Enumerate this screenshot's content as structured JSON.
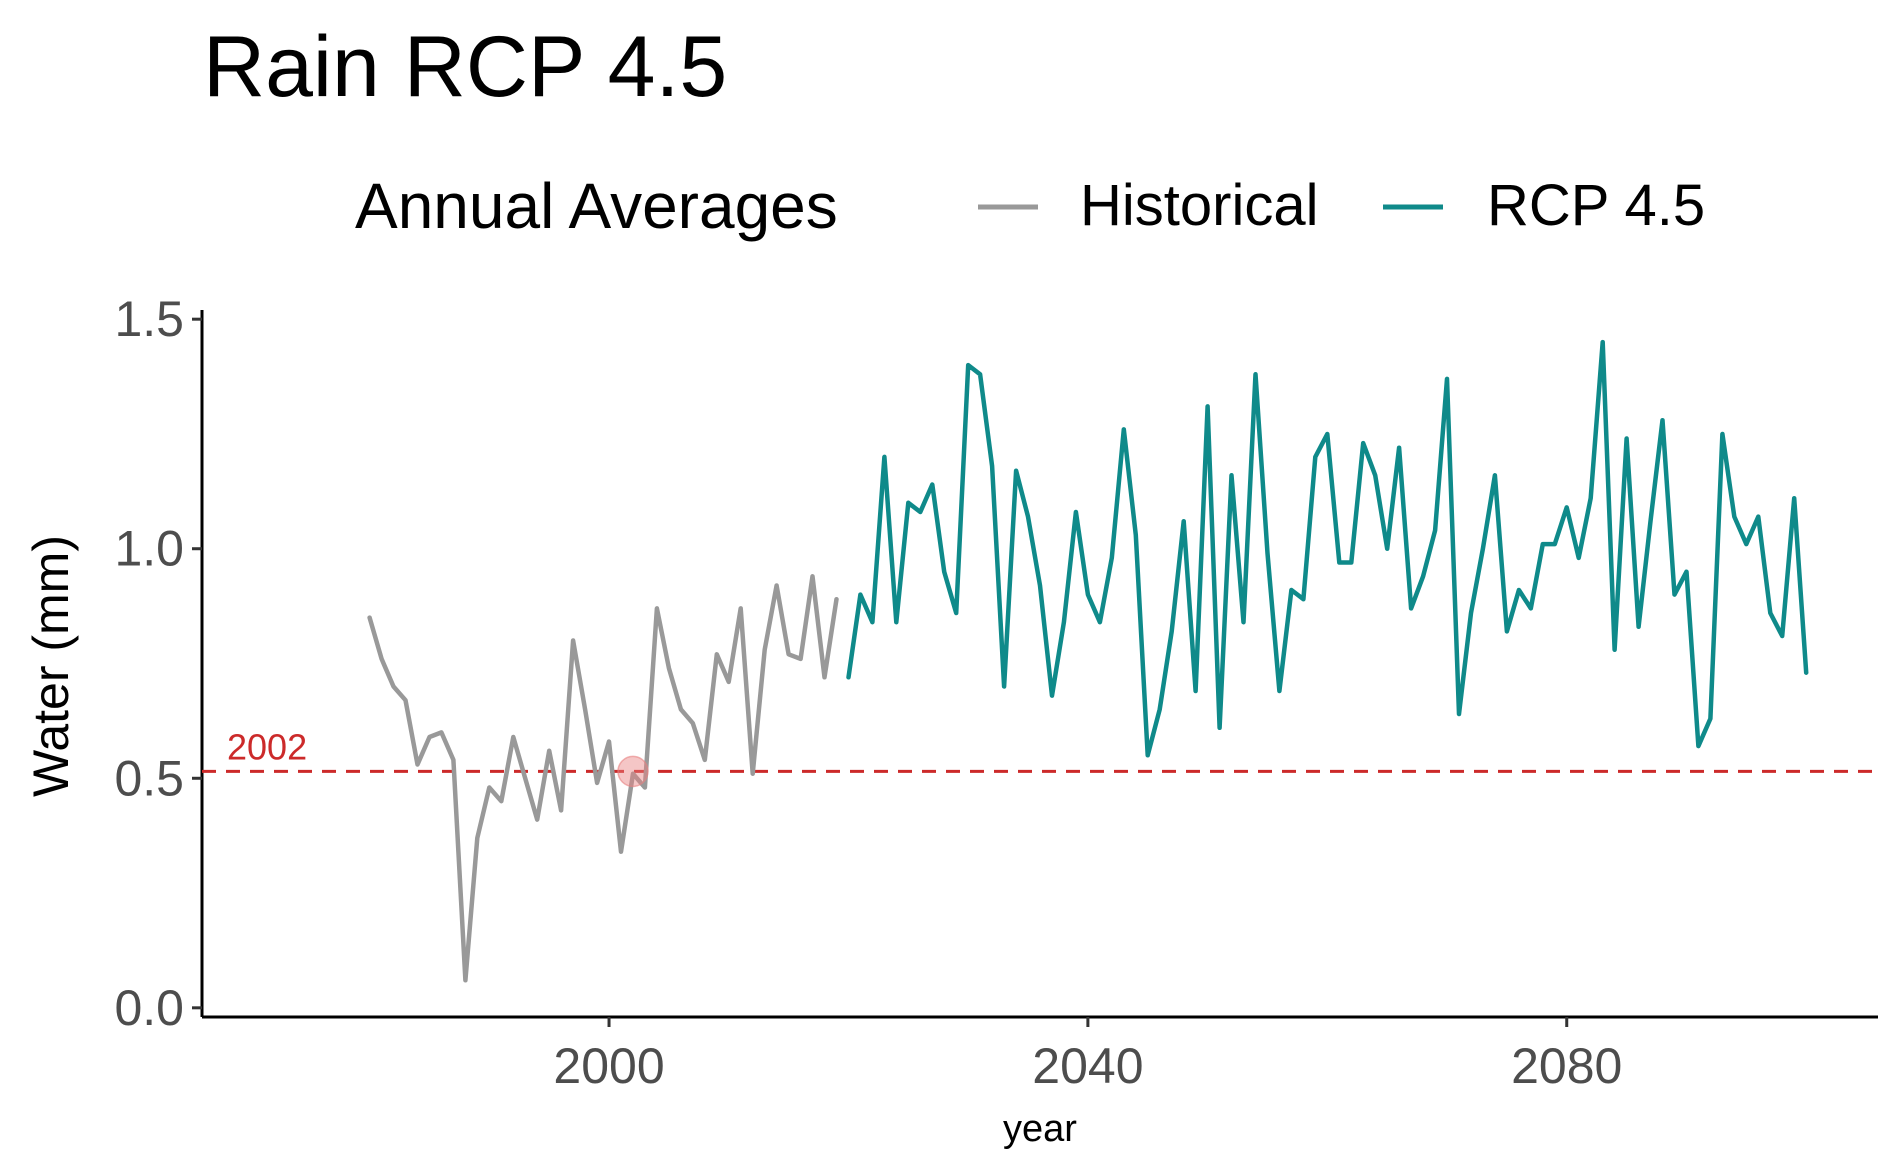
{
  "chart_data": {
    "type": "line",
    "title": "Rain RCP 4.5",
    "legend": {
      "title": "Annual Averages",
      "position": "top",
      "entries": [
        {
          "label": "Historical",
          "color": "#999999"
        },
        {
          "label": "RCP 4.5",
          "color": "#0f8a8a"
        }
      ]
    },
    "xlabel": "year",
    "ylabel": "Water (mm)",
    "xlim": [
      1966,
      2106
    ],
    "ylim": [
      -0.02,
      1.52
    ],
    "xticks": [
      2000,
      2040,
      2080
    ],
    "yticks": [
      0.0,
      0.5,
      1.0,
      1.5
    ],
    "ytick_labels": [
      "0.0",
      "0.5",
      "1.0",
      "1.5"
    ],
    "grid": false,
    "reference_line": {
      "y": 0.515,
      "label": "2002",
      "color": "#cc2a2a",
      "style": "dashed"
    },
    "highlight_point": {
      "x": 2002,
      "y": 0.515,
      "color": "#e88080"
    },
    "series": [
      {
        "name": "Historical",
        "color": "#999999",
        "x": [
          1980,
          1981,
          1982,
          1983,
          1984,
          1985,
          1986,
          1987,
          1988,
          1989,
          1990,
          1991,
          1992,
          1993,
          1994,
          1995,
          1996,
          1997,
          1998,
          1999,
          2000,
          2001,
          2002,
          2003,
          2004,
          2005,
          2006,
          2007,
          2008,
          2009,
          2010,
          2011,
          2012,
          2013,
          2014,
          2015,
          2016,
          2017,
          2018,
          2019
        ],
        "y": [
          0.85,
          0.76,
          0.7,
          0.67,
          0.53,
          0.59,
          0.6,
          0.54,
          0.06,
          0.37,
          0.48,
          0.45,
          0.59,
          0.5,
          0.41,
          0.56,
          0.43,
          0.8,
          0.65,
          0.49,
          0.58,
          0.34,
          0.51,
          0.48,
          0.87,
          0.74,
          0.65,
          0.62,
          0.54,
          0.77,
          0.71,
          0.87,
          0.51,
          0.78,
          0.92,
          0.77,
          0.76,
          0.94,
          0.72,
          0.89
        ]
      },
      {
        "name": "RCP 4.5",
        "color": "#0f8a8a",
        "x": [
          2020,
          2021,
          2022,
          2023,
          2024,
          2025,
          2026,
          2027,
          2028,
          2029,
          2030,
          2031,
          2032,
          2033,
          2034,
          2035,
          2036,
          2037,
          2038,
          2039,
          2040,
          2041,
          2042,
          2043,
          2044,
          2045,
          2046,
          2047,
          2048,
          2049,
          2050,
          2051,
          2052,
          2053,
          2054,
          2055,
          2056,
          2057,
          2058,
          2059,
          2060,
          2061,
          2062,
          2063,
          2064,
          2065,
          2066,
          2067,
          2068,
          2069,
          2070,
          2071,
          2072,
          2073,
          2074,
          2075,
          2076,
          2077,
          2078,
          2079,
          2080,
          2081,
          2082,
          2083,
          2084,
          2085,
          2086,
          2087,
          2088,
          2089,
          2090,
          2091,
          2092,
          2093,
          2094,
          2095,
          2096,
          2097,
          2098,
          2099,
          2100
        ],
        "y": [
          0.72,
          0.9,
          0.84,
          1.2,
          0.84,
          1.1,
          1.08,
          1.14,
          0.95,
          0.86,
          1.4,
          1.38,
          1.18,
          0.7,
          1.17,
          1.07,
          0.92,
          0.68,
          0.84,
          1.08,
          0.9,
          0.84,
          0.98,
          1.26,
          1.03,
          0.55,
          0.65,
          0.82,
          1.06,
          0.69,
          1.31,
          0.61,
          1.16,
          0.84,
          1.38,
          0.99,
          0.69,
          0.91,
          0.89,
          1.2,
          1.25,
          0.97,
          0.97,
          1.23,
          1.16,
          1.0,
          1.22,
          0.87,
          0.94,
          1.04,
          1.37,
          0.64,
          0.86,
          1.0,
          1.16,
          0.82,
          0.91,
          0.87,
          1.01,
          1.01,
          1.09,
          0.98,
          1.11,
          1.45,
          0.78,
          1.24,
          0.83,
          1.06,
          1.28,
          0.9,
          0.95,
          0.57,
          0.63,
          1.25,
          1.07,
          1.01,
          1.07,
          0.86,
          0.81,
          1.11,
          0.73
        ]
      }
    ]
  }
}
